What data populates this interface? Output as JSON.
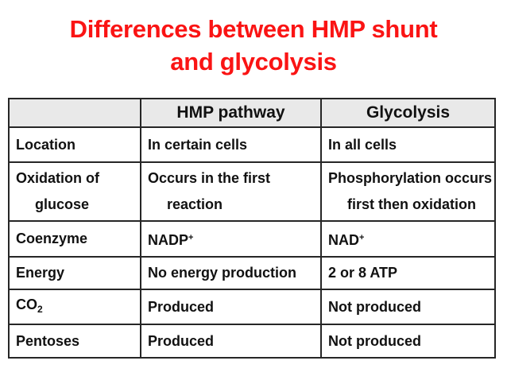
{
  "title": {
    "line1": "Differences between HMP shunt",
    "line2": "and glycolysis"
  },
  "colors": {
    "title_red": "#FA1414",
    "header_bg": "#E9E9E9",
    "border": "#262626",
    "text": "#111111"
  },
  "table": {
    "headers": [
      "",
      "HMP pathway",
      "Glycolysis"
    ],
    "rows": [
      {
        "feature": [
          "Location"
        ],
        "hmp": [
          "In certain cells"
        ],
        "glycolysis": [
          "In all cells"
        ]
      },
      {
        "feature": [
          "Oxidation of",
          ">glucose"
        ],
        "hmp": [
          "Occurs in the first",
          ">reaction"
        ],
        "glycolysis": [
          "Phosphorylation occurs",
          ">first then oxidation"
        ]
      },
      {
        "feature": [
          "Coenzyme"
        ],
        "hmp": [
          "NADP^+^"
        ],
        "glycolysis": [
          "NAD^+^"
        ]
      },
      {
        "feature": [
          "Energy"
        ],
        "hmp": [
          "No energy production"
        ],
        "glycolysis": [
          "2 or 8 ATP"
        ]
      },
      {
        "feature": [
          "CO_2_"
        ],
        "hmp": [
          "Produced"
        ],
        "glycolysis": [
          "Not produced"
        ]
      },
      {
        "feature": [
          "Pentoses"
        ],
        "hmp": [
          "Produced"
        ],
        "glycolysis": [
          "Not produced"
        ]
      }
    ]
  }
}
